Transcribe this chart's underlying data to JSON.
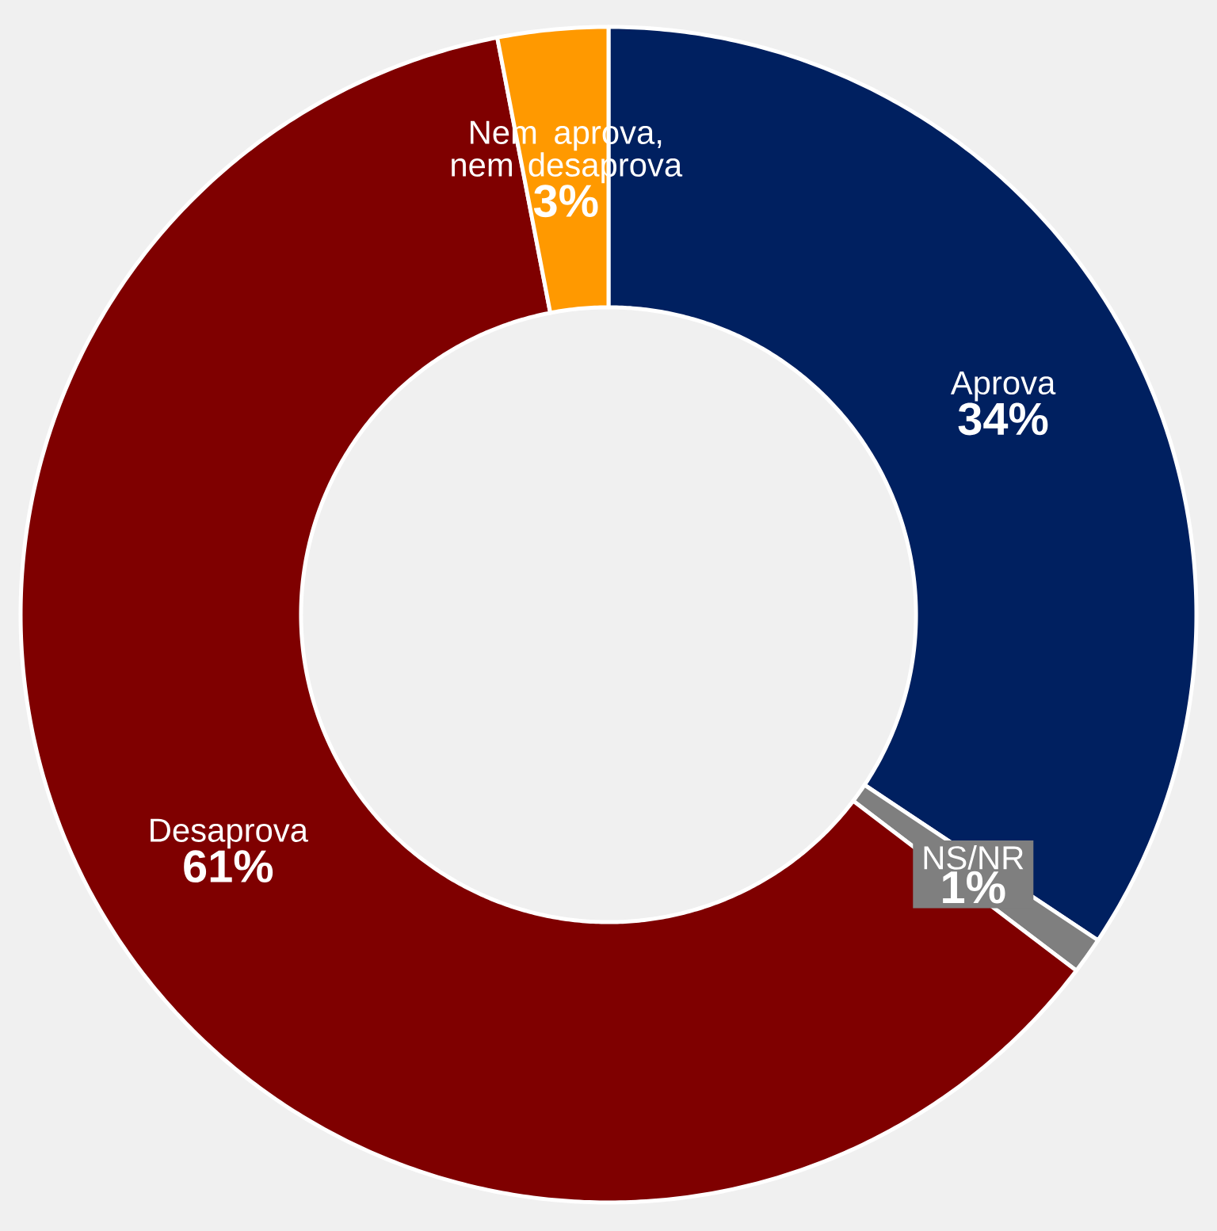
{
  "chart_data": {
    "type": "donut",
    "categories": [
      "Aprova",
      "NS/NR",
      "Desaprova",
      "Nem aprova, nem desaprova"
    ],
    "values": [
      34,
      1,
      61,
      3
    ],
    "value_labels": [
      "34%",
      "1%",
      "61%",
      "3%"
    ],
    "colors": [
      "#002060",
      "#7f7f7f",
      "#7f0000",
      "#ff9900"
    ]
  }
}
